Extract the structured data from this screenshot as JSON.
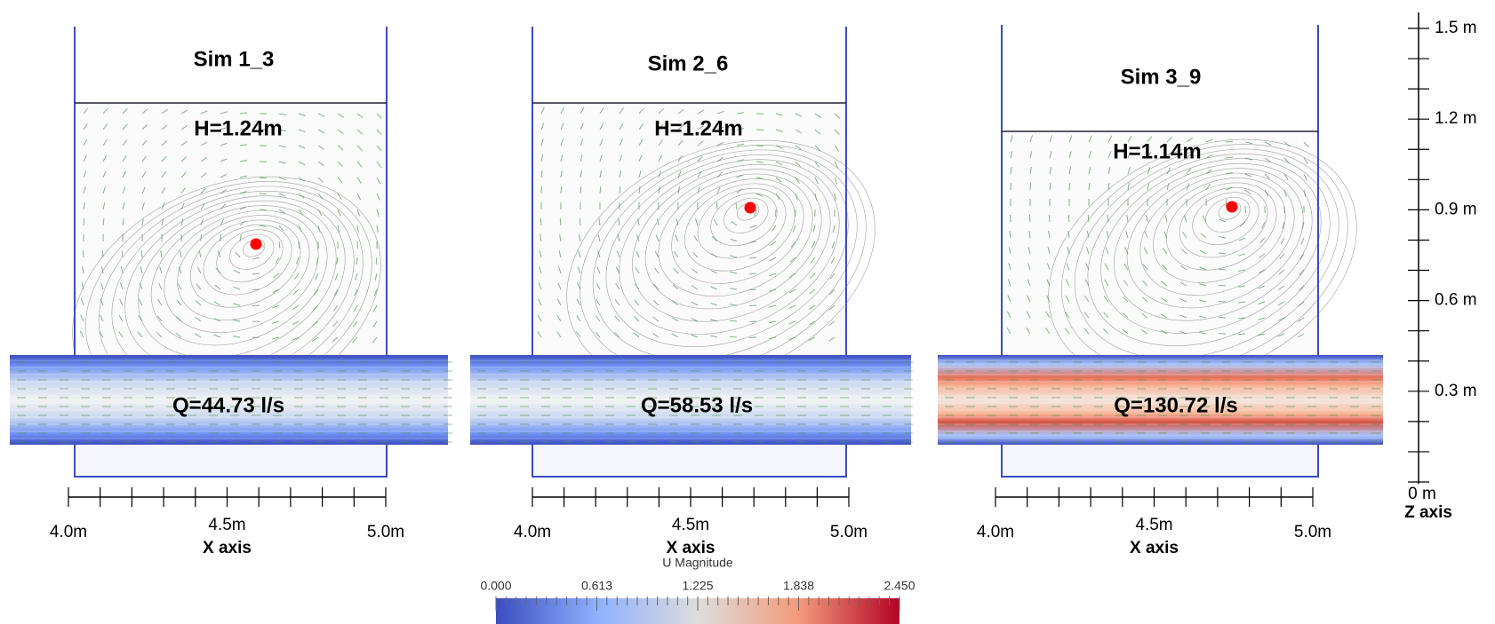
{
  "panels": [
    {
      "title": "Sim 1_3",
      "head": "H=1.24m",
      "flow": "Q=44.73 l/s",
      "x_axis": {
        "title": "X axis",
        "tick_labels": [
          "4.0m",
          "4.5m",
          "5.0m"
        ]
      }
    },
    {
      "title": "Sim 2_6",
      "head": "H=1.24m",
      "flow": "Q=58.53 l/s",
      "x_axis": {
        "title": "X axis",
        "tick_labels": [
          "4.0m",
          "4.5m",
          "5.0m"
        ]
      }
    },
    {
      "title": "Sim 3_9",
      "head": "H=1.14m",
      "flow": "Q=130.72 l/s",
      "x_axis": {
        "title": "X axis",
        "tick_labels": [
          "4.0m",
          "4.5m",
          "5.0m"
        ]
      }
    }
  ],
  "z_axis": {
    "title": "Z axis",
    "tick_labels": [
      "1.5 m",
      "1.2 m",
      "0.9 m",
      "0.6 m",
      "0.3 m",
      "0 m"
    ]
  },
  "colorbar": {
    "title": "U Magnitude",
    "tick_labels": [
      "0.000",
      "0.613",
      "1.225",
      "1.838",
      "2.450"
    ]
  }
}
